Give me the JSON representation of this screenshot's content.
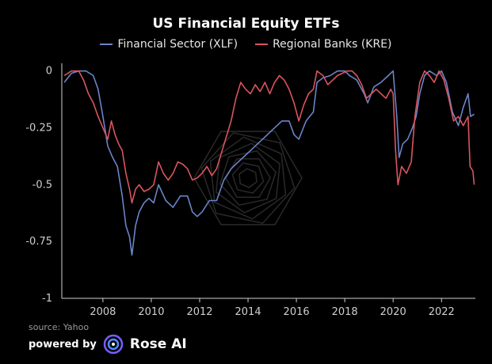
{
  "chart_data": {
    "type": "line",
    "title": "US Financial Equity ETFs",
    "xlabel": "",
    "ylabel": "",
    "xlim": [
      2006.3,
      2023.4
    ],
    "ylim": [
      -1,
      0.02
    ],
    "x_ticks": [
      2008,
      2010,
      2012,
      2014,
      2016,
      2018,
      2020,
      2022
    ],
    "y_ticks": [
      0,
      -0.25,
      -0.5,
      -0.75,
      -1
    ],
    "y_tick_labels": [
      "0",
      "-0.25",
      "-0.5",
      "-0.75",
      "-1"
    ],
    "legend_position": "top-center",
    "grid": false,
    "series": [
      {
        "name": "Financial Sector (XLF)",
        "color": "#6b84c9",
        "points": [
          [
            2006.4,
            -0.05
          ],
          [
            2006.7,
            -0.01
          ],
          [
            2007.0,
            0.0
          ],
          [
            2007.3,
            0.0
          ],
          [
            2007.6,
            -0.02
          ],
          [
            2007.8,
            -0.08
          ],
          [
            2008.0,
            -0.2
          ],
          [
            2008.2,
            -0.33
          ],
          [
            2008.4,
            -0.38
          ],
          [
            2008.6,
            -0.42
          ],
          [
            2008.8,
            -0.55
          ],
          [
            2008.95,
            -0.68
          ],
          [
            2009.1,
            -0.73
          ],
          [
            2009.2,
            -0.81
          ],
          [
            2009.35,
            -0.68
          ],
          [
            2009.5,
            -0.62
          ],
          [
            2009.7,
            -0.58
          ],
          [
            2009.9,
            -0.56
          ],
          [
            2010.1,
            -0.58
          ],
          [
            2010.3,
            -0.5
          ],
          [
            2010.6,
            -0.57
          ],
          [
            2010.9,
            -0.6
          ],
          [
            2011.2,
            -0.55
          ],
          [
            2011.5,
            -0.55
          ],
          [
            2011.7,
            -0.62
          ],
          [
            2011.9,
            -0.64
          ],
          [
            2012.1,
            -0.62
          ],
          [
            2012.4,
            -0.57
          ],
          [
            2012.7,
            -0.57
          ],
          [
            2013.0,
            -0.48
          ],
          [
            2013.3,
            -0.43
          ],
          [
            2013.6,
            -0.4
          ],
          [
            2013.9,
            -0.37
          ],
          [
            2014.2,
            -0.34
          ],
          [
            2014.5,
            -0.31
          ],
          [
            2014.8,
            -0.28
          ],
          [
            2015.1,
            -0.25
          ],
          [
            2015.4,
            -0.22
          ],
          [
            2015.7,
            -0.22
          ],
          [
            2015.9,
            -0.28
          ],
          [
            2016.1,
            -0.3
          ],
          [
            2016.4,
            -0.22
          ],
          [
            2016.7,
            -0.18
          ],
          [
            2016.85,
            -0.05
          ],
          [
            2017.1,
            -0.03
          ],
          [
            2017.4,
            -0.02
          ],
          [
            2017.7,
            0.0
          ],
          [
            2018.0,
            0.0
          ],
          [
            2018.2,
            -0.02
          ],
          [
            2018.5,
            -0.04
          ],
          [
            2018.8,
            -0.1
          ],
          [
            2018.95,
            -0.14
          ],
          [
            2019.2,
            -0.07
          ],
          [
            2019.5,
            -0.05
          ],
          [
            2019.8,
            -0.02
          ],
          [
            2020.0,
            0.0
          ],
          [
            2020.15,
            -0.2
          ],
          [
            2020.25,
            -0.38
          ],
          [
            2020.4,
            -0.32
          ],
          [
            2020.6,
            -0.3
          ],
          [
            2020.8,
            -0.25
          ],
          [
            2020.95,
            -0.2
          ],
          [
            2021.1,
            -0.1
          ],
          [
            2021.3,
            -0.02
          ],
          [
            2021.5,
            0.0
          ],
          [
            2021.8,
            -0.02
          ],
          [
            2022.0,
            0.0
          ],
          [
            2022.2,
            -0.05
          ],
          [
            2022.45,
            -0.18
          ],
          [
            2022.7,
            -0.24
          ],
          [
            2022.9,
            -0.16
          ],
          [
            2023.1,
            -0.1
          ],
          [
            2023.2,
            -0.2
          ],
          [
            2023.35,
            -0.19
          ]
        ]
      },
      {
        "name": "Regional Banks (KRE)",
        "color": "#d9555e",
        "points": [
          [
            2006.4,
            -0.02
          ],
          [
            2006.7,
            0.0
          ],
          [
            2007.0,
            0.0
          ],
          [
            2007.2,
            -0.04
          ],
          [
            2007.4,
            -0.1
          ],
          [
            2007.6,
            -0.14
          ],
          [
            2007.8,
            -0.2
          ],
          [
            2008.0,
            -0.25
          ],
          [
            2008.2,
            -0.3
          ],
          [
            2008.35,
            -0.22
          ],
          [
            2008.5,
            -0.28
          ],
          [
            2008.65,
            -0.32
          ],
          [
            2008.8,
            -0.35
          ],
          [
            2008.95,
            -0.45
          ],
          [
            2009.1,
            -0.52
          ],
          [
            2009.2,
            -0.58
          ],
          [
            2009.35,
            -0.52
          ],
          [
            2009.5,
            -0.5
          ],
          [
            2009.7,
            -0.53
          ],
          [
            2009.9,
            -0.52
          ],
          [
            2010.1,
            -0.5
          ],
          [
            2010.3,
            -0.4
          ],
          [
            2010.5,
            -0.45
          ],
          [
            2010.7,
            -0.48
          ],
          [
            2010.9,
            -0.45
          ],
          [
            2011.1,
            -0.4
          ],
          [
            2011.3,
            -0.41
          ],
          [
            2011.5,
            -0.43
          ],
          [
            2011.7,
            -0.48
          ],
          [
            2011.9,
            -0.47
          ],
          [
            2012.1,
            -0.45
          ],
          [
            2012.3,
            -0.42
          ],
          [
            2012.5,
            -0.46
          ],
          [
            2012.7,
            -0.43
          ],
          [
            2012.9,
            -0.36
          ],
          [
            2013.1,
            -0.29
          ],
          [
            2013.3,
            -0.22
          ],
          [
            2013.5,
            -0.12
          ],
          [
            2013.7,
            -0.05
          ],
          [
            2013.9,
            -0.08
          ],
          [
            2014.1,
            -0.1
          ],
          [
            2014.3,
            -0.06
          ],
          [
            2014.5,
            -0.09
          ],
          [
            2014.7,
            -0.05
          ],
          [
            2014.9,
            -0.1
          ],
          [
            2015.1,
            -0.05
          ],
          [
            2015.3,
            -0.02
          ],
          [
            2015.5,
            -0.04
          ],
          [
            2015.7,
            -0.08
          ],
          [
            2015.9,
            -0.14
          ],
          [
            2016.1,
            -0.22
          ],
          [
            2016.3,
            -0.15
          ],
          [
            2016.5,
            -0.1
          ],
          [
            2016.7,
            -0.08
          ],
          [
            2016.85,
            0.0
          ],
          [
            2017.1,
            -0.02
          ],
          [
            2017.3,
            -0.06
          ],
          [
            2017.5,
            -0.04
          ],
          [
            2017.7,
            -0.02
          ],
          [
            2017.9,
            -0.01
          ],
          [
            2018.1,
            0.0
          ],
          [
            2018.3,
            0.0
          ],
          [
            2018.5,
            -0.02
          ],
          [
            2018.7,
            -0.06
          ],
          [
            2018.9,
            -0.12
          ],
          [
            2019.1,
            -0.1
          ],
          [
            2019.3,
            -0.08
          ],
          [
            2019.5,
            -0.1
          ],
          [
            2019.7,
            -0.12
          ],
          [
            2019.9,
            -0.08
          ],
          [
            2020.0,
            -0.1
          ],
          [
            2020.1,
            -0.35
          ],
          [
            2020.2,
            -0.5
          ],
          [
            2020.35,
            -0.42
          ],
          [
            2020.55,
            -0.45
          ],
          [
            2020.75,
            -0.4
          ],
          [
            2020.9,
            -0.2
          ],
          [
            2021.1,
            -0.05
          ],
          [
            2021.3,
            0.0
          ],
          [
            2021.5,
            -0.02
          ],
          [
            2021.7,
            -0.05
          ],
          [
            2021.9,
            0.0
          ],
          [
            2022.1,
            -0.04
          ],
          [
            2022.3,
            -0.12
          ],
          [
            2022.5,
            -0.22
          ],
          [
            2022.7,
            -0.2
          ],
          [
            2022.9,
            -0.24
          ],
          [
            2023.1,
            -0.2
          ],
          [
            2023.18,
            -0.42
          ],
          [
            2023.3,
            -0.44
          ],
          [
            2023.35,
            -0.5
          ]
        ]
      }
    ]
  },
  "footer": {
    "source": "source: Yahoo",
    "powered_by": "powered by",
    "brand": "Rose AI"
  },
  "colors": {
    "background": "#000000",
    "axis": "#cfcfcf",
    "logo_purple": "#7b5cff",
    "logo_blue": "#4d8cff"
  }
}
